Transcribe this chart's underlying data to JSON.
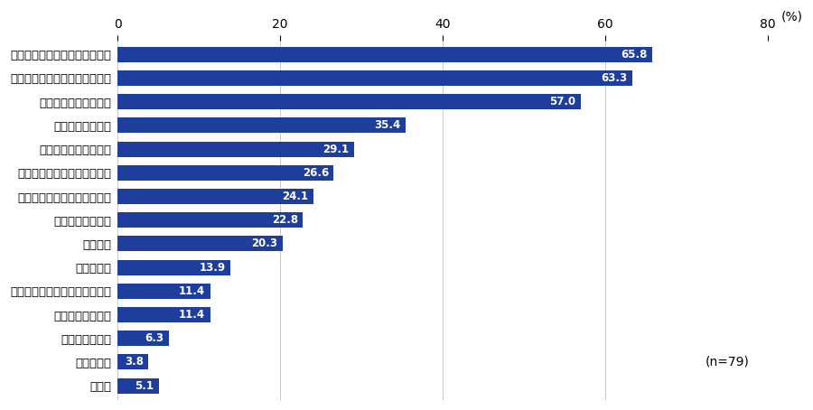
{
  "categories": [
    "欧米諸国の対ロ制裁による制限",
    "日本政府の対ロ制裁による制限",
    "自社の事業活動の自粛",
    "物流の混乱・停滞",
    "他社の事業活動の自粛",
    "ロシアの対抗措置による制限",
    "ロシア市場における需要縮小",
    "在庫の不足・枯渇",
    "為替変動",
    "販路の縮小",
    "ロシア市場における購買力低下",
    "調達コストの増大",
    "競合他社の台頭",
    "生産の縮小",
    "その他"
  ],
  "values": [
    65.8,
    63.3,
    57.0,
    35.4,
    29.1,
    26.6,
    24.1,
    22.8,
    20.3,
    13.9,
    11.4,
    11.4,
    6.3,
    3.8,
    5.1
  ],
  "bar_color": "#1F3E9B",
  "label_color": "#FFFFFF",
  "percent_label": "(%)",
  "xlim": [
    0,
    80
  ],
  "xticks": [
    0,
    20,
    40,
    60,
    80
  ],
  "n_label": "(n=79)",
  "ytick_fontsize": 9.5,
  "value_fontsize": 8.5,
  "axis_fontsize": 10,
  "n_fontsize": 10,
  "bar_height": 0.65,
  "background_color": "#FFFFFF",
  "grid_color": "#CCCCCC"
}
